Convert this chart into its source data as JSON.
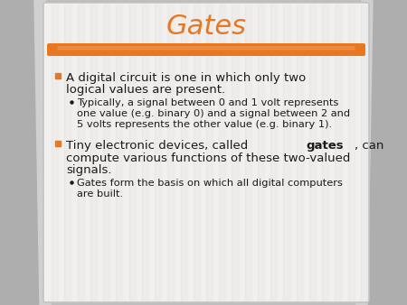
{
  "title": "Gates",
  "title_color": "#E87722",
  "title_fontsize": 22,
  "slide_bg": "#BEBEBE",
  "orange_bar_color": "#E87722",
  "orange_bar_highlight": "#F0A060",
  "content_bg": "#F5F4F2",
  "content_stripe_a": "#F0EEEC",
  "content_stripe_b": "#E8E6E4",
  "curtain_color": "#AEAEAE",
  "bullet_color": "#E87722",
  "text_color": "#1A1A1A",
  "main_fontsize": 9.5,
  "sub_fontsize": 8.2,
  "bullet1_line1": "A digital circuit is one in which only two",
  "bullet1_line2": "logical values are present.",
  "sub1_line1": "Typically, a signal between 0 and 1 volt represents",
  "sub1_line2": "one value (e.g. binary 0) and a signal between 2 and",
  "sub1_line3": "5 volts represents the other value (e.g. binary 1).",
  "bullet2_pre": "Tiny electronic devices, called ",
  "bullet2_bold": "gates",
  "bullet2_post": ", can",
  "bullet2_line2": "compute various functions of these two-valued",
  "bullet2_line3": "signals.",
  "sub2_line1": "Gates form the basis on which all digital computers",
  "sub2_line2": "are built."
}
